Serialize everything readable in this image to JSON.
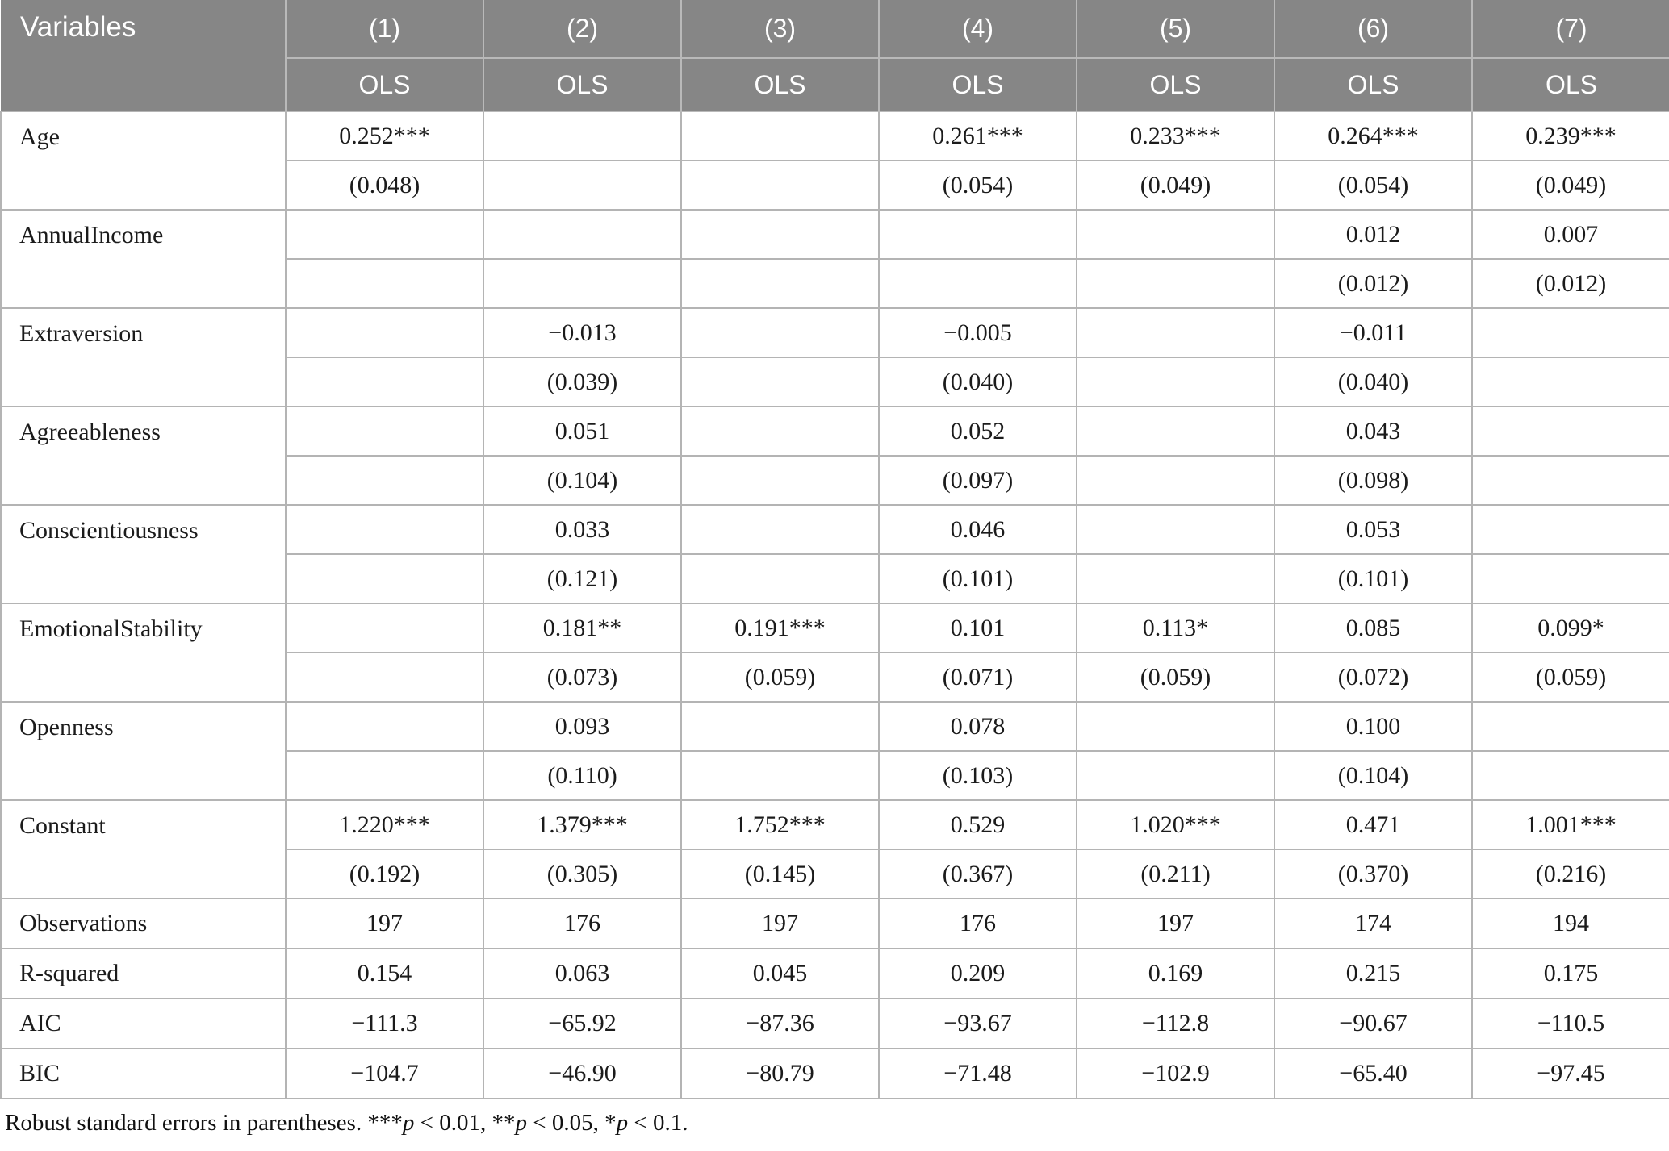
{
  "table": {
    "header": {
      "variables_label": "Variables",
      "columns": [
        {
          "number": "(1)",
          "method": "OLS"
        },
        {
          "number": "(2)",
          "method": "OLS"
        },
        {
          "number": "(3)",
          "method": "OLS"
        },
        {
          "number": "(4)",
          "method": "OLS"
        },
        {
          "number": "(5)",
          "method": "OLS"
        },
        {
          "number": "(6)",
          "method": "OLS"
        },
        {
          "number": "(7)",
          "method": "OLS"
        }
      ]
    },
    "rows": [
      {
        "label": "Age",
        "coef": [
          "0.252***",
          "",
          "",
          "0.261***",
          "0.233***",
          "0.264***",
          "0.239***"
        ],
        "se": [
          "(0.048)",
          "",
          "",
          "(0.054)",
          "(0.049)",
          "(0.054)",
          "(0.049)"
        ]
      },
      {
        "label": "AnnualIncome",
        "coef": [
          "",
          "",
          "",
          "",
          "",
          "0.012",
          "0.007"
        ],
        "se": [
          "",
          "",
          "",
          "",
          "",
          "(0.012)",
          "(0.012)"
        ]
      },
      {
        "label": "Extraversion",
        "coef": [
          "",
          "−0.013",
          "",
          "−0.005",
          "",
          "−0.011",
          ""
        ],
        "se": [
          "",
          "(0.039)",
          "",
          "(0.040)",
          "",
          "(0.040)",
          ""
        ]
      },
      {
        "label": "Agreeableness",
        "coef": [
          "",
          "0.051",
          "",
          "0.052",
          "",
          "0.043",
          ""
        ],
        "se": [
          "",
          "(0.104)",
          "",
          "(0.097)",
          "",
          "(0.098)",
          ""
        ]
      },
      {
        "label": "Conscientiousness",
        "coef": [
          "",
          "0.033",
          "",
          "0.046",
          "",
          "0.053",
          ""
        ],
        "se": [
          "",
          "(0.121)",
          "",
          "(0.101)",
          "",
          "(0.101)",
          ""
        ]
      },
      {
        "label": "EmotionalStability",
        "coef": [
          "",
          "0.181**",
          "0.191***",
          "0.101",
          "0.113*",
          "0.085",
          "0.099*"
        ],
        "se": [
          "",
          "(0.073)",
          "(0.059)",
          "(0.071)",
          "(0.059)",
          "(0.072)",
          "(0.059)"
        ]
      },
      {
        "label": "Openness",
        "coef": [
          "",
          "0.093",
          "",
          "0.078",
          "",
          "0.100",
          ""
        ],
        "se": [
          "",
          "(0.110)",
          "",
          "(0.103)",
          "",
          "(0.104)",
          ""
        ]
      },
      {
        "label": "Constant",
        "coef": [
          "1.220***",
          "1.379***",
          "1.752***",
          "0.529",
          "1.020***",
          "0.471",
          "1.001***"
        ],
        "se": [
          "(0.192)",
          "(0.305)",
          "(0.145)",
          "(0.367)",
          "(0.211)",
          "(0.370)",
          "(0.216)"
        ]
      }
    ],
    "stats": [
      {
        "label": "Observations",
        "values": [
          "197",
          "176",
          "197",
          "176",
          "197",
          "174",
          "194"
        ]
      },
      {
        "label": "R-squared",
        "values": [
          "0.154",
          "0.063",
          "0.045",
          "0.209",
          "0.169",
          "0.215",
          "0.175"
        ]
      },
      {
        "label": "AIC",
        "values": [
          "−111.3",
          "−65.92",
          "−87.36",
          "−93.67",
          "−112.8",
          "−90.67",
          "−110.5"
        ]
      },
      {
        "label": "BIC",
        "values": [
          "−104.7",
          "−46.90",
          "−80.79",
          "−71.48",
          "−102.9",
          "−65.40",
          "−97.45"
        ]
      }
    ]
  },
  "footnote": {
    "parts": [
      "Robust standard errors in parentheses. ***",
      "p",
      " < 0.01, **",
      "p",
      " < 0.05, *",
      "p",
      " < 0.1."
    ]
  },
  "colors": {
    "header_bg": "#868686",
    "header_text": "#ffffff",
    "border": "#b4b4b4",
    "text": "#1b1b1b",
    "page_bg": "#ffffff"
  }
}
